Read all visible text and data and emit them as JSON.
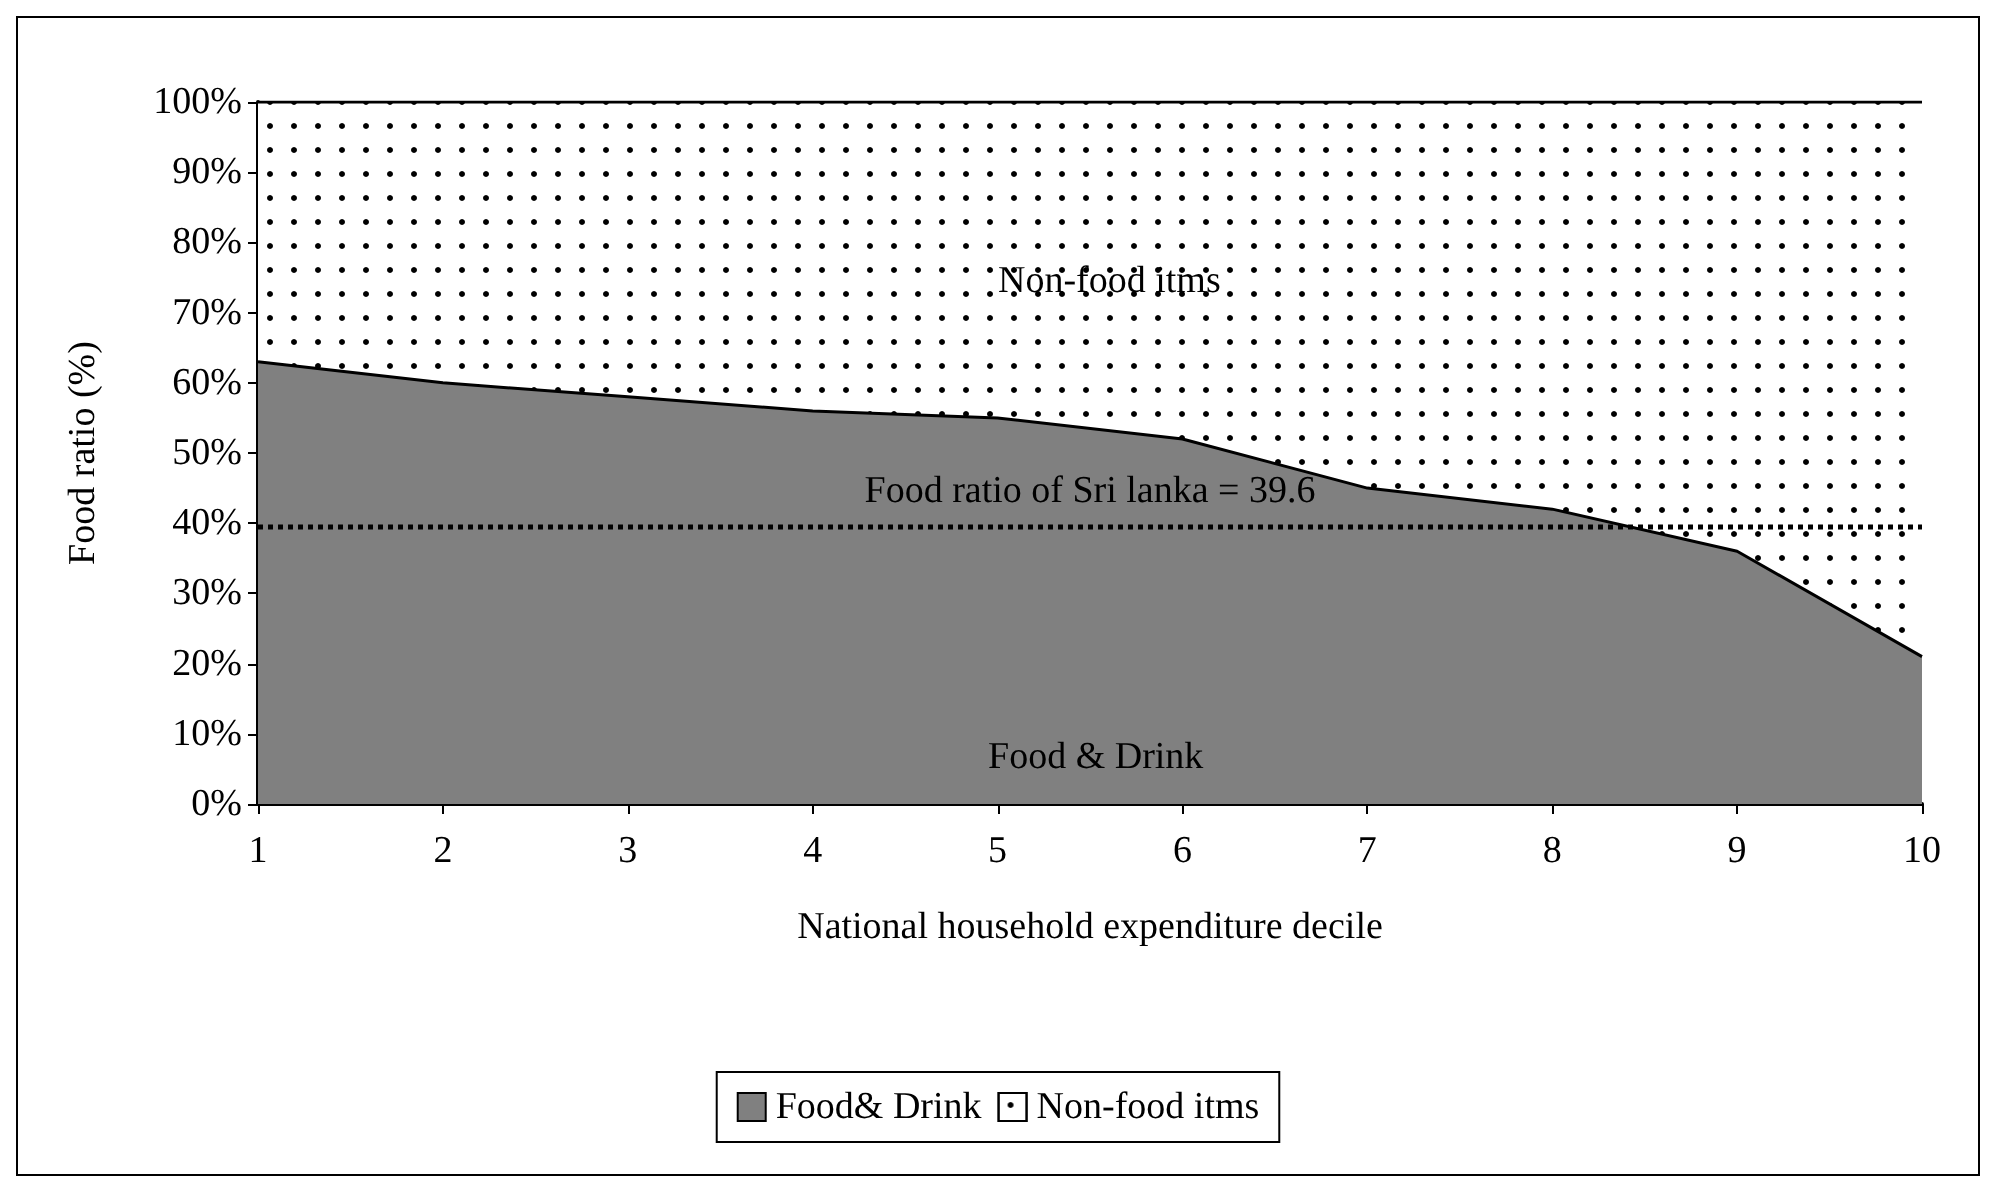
{
  "chart_data": {
    "type": "area",
    "stacked": true,
    "xlabel": "National household expenditure decile",
    "ylabel": "Food ratio (%)",
    "categories": [
      "1",
      "2",
      "3",
      "4",
      "5",
      "6",
      "7",
      "8",
      "9",
      "10"
    ],
    "series": [
      {
        "name": "Food& Drink",
        "color": "#808080",
        "values": [
          63,
          60,
          58,
          56,
          55,
          52,
          45,
          42,
          36,
          21
        ]
      },
      {
        "name": "Non-food itms",
        "color": "#ffffff",
        "values": [
          37,
          40,
          42,
          44,
          45,
          48,
          55,
          58,
          64,
          79
        ]
      }
    ],
    "ylim": [
      0,
      100
    ],
    "yticks": [
      {
        "value": 0,
        "label": "0%"
      },
      {
        "value": 10,
        "label": "10%"
      },
      {
        "value": 20,
        "label": "20%"
      },
      {
        "value": 30,
        "label": "30%"
      },
      {
        "value": 40,
        "label": "40%"
      },
      {
        "value": 50,
        "label": "50%"
      },
      {
        "value": 60,
        "label": "60%"
      },
      {
        "value": 70,
        "label": "70%"
      },
      {
        "value": 80,
        "label": "80%"
      },
      {
        "value": 90,
        "label": "90%"
      },
      {
        "value": 100,
        "label": "100%"
      }
    ],
    "ref_lines": [
      {
        "axis": "y",
        "value": 39.6,
        "label": "Food ratio of Sri lanka = 39.6",
        "color": "#000000",
        "line_style": "dotted"
      }
    ],
    "annotations": [
      "Non-food itms",
      "Food & Drink"
    ],
    "grid": false,
    "legend": "bottom",
    "marker": "none",
    "line_style": "solid"
  }
}
